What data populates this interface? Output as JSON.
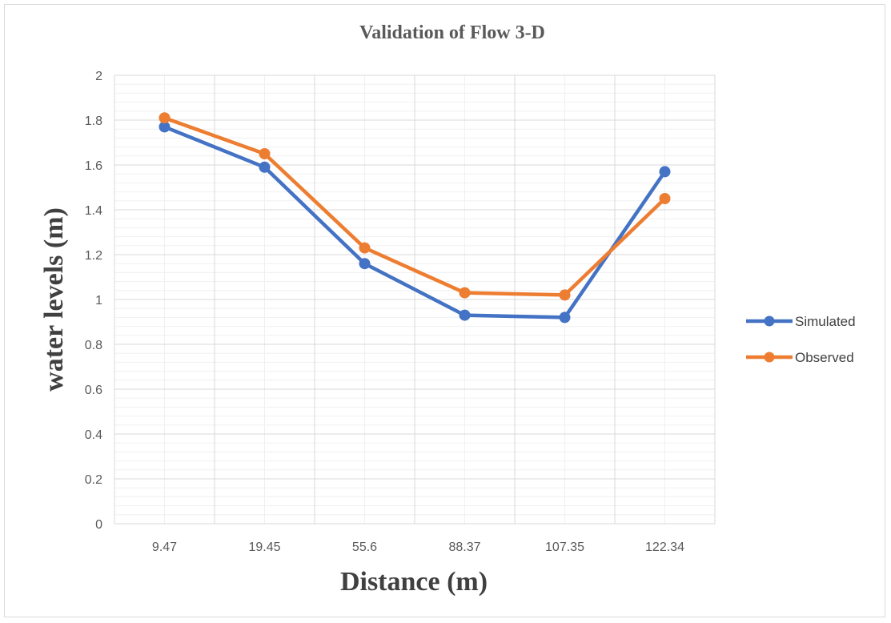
{
  "chart_data": {
    "type": "line",
    "title": "Validation of Flow 3-D",
    "xlabel": "Distance (m)",
    "ylabel": "water levels (m)",
    "categories": [
      "9.47",
      "19.45",
      "55.6",
      "88.37",
      "107.35",
      "122.34"
    ],
    "ylim": [
      0,
      2
    ],
    "yticks": [
      "0",
      "0.2",
      "0.4",
      "0.6",
      "0.8",
      "1",
      "1.2",
      "1.4",
      "1.6",
      "1.8",
      "2"
    ],
    "grid": true,
    "legend_position": "right",
    "series": [
      {
        "name": "Simulated",
        "color": "#4472c4",
        "values": [
          1.77,
          1.59,
          1.16,
          0.93,
          0.92,
          1.57
        ]
      },
      {
        "name": "Observed",
        "color": "#ed7d31",
        "values": [
          1.81,
          1.65,
          1.23,
          1.03,
          1.02,
          1.45
        ]
      }
    ]
  }
}
